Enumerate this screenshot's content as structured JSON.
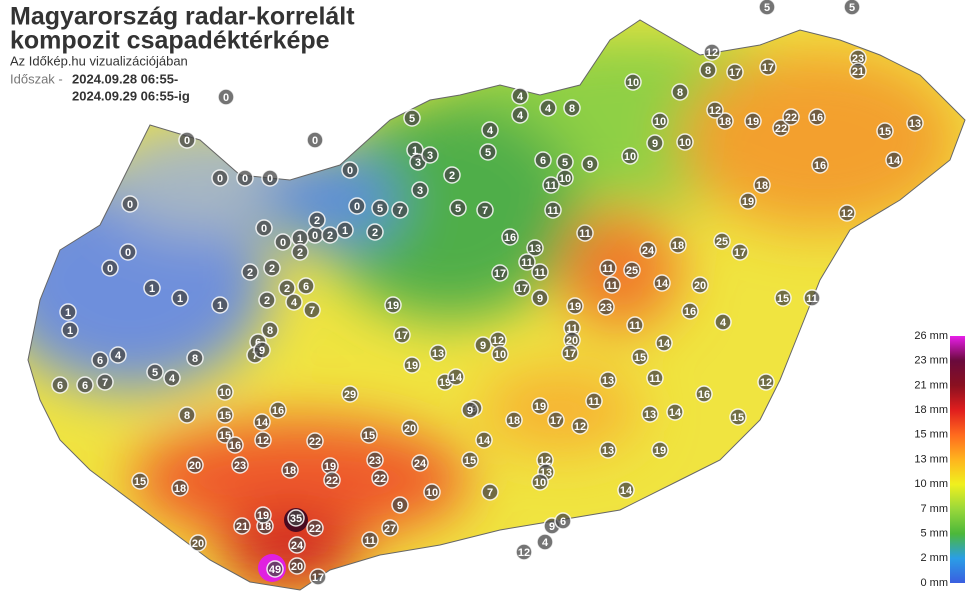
{
  "header": {
    "title_lines": [
      "Magyarország radar-korrelált",
      "kompozit csapadéktérképe"
    ],
    "subtitle": "Az Időkép.hu vizualizációjában",
    "period_label": "Időszak -",
    "period_from": "2024.09.28 06:55-",
    "period_to": "2024.09.29 06:55-ig"
  },
  "legend": {
    "ticks": [
      {
        "value": 26,
        "label": "26 mm"
      },
      {
        "value": 23,
        "label": "23 mm"
      },
      {
        "value": 21,
        "label": "21 mm"
      },
      {
        "value": 18,
        "label": "18 mm"
      },
      {
        "value": 15,
        "label": "15 mm"
      },
      {
        "value": 13,
        "label": "13 mm"
      },
      {
        "value": 10,
        "label": "10 mm"
      },
      {
        "value": 7,
        "label": "7 mm"
      },
      {
        "value": 5,
        "label": "5 mm"
      },
      {
        "value": 2,
        "label": "2 mm"
      },
      {
        "value": 0,
        "label": "0 mm"
      }
    ],
    "colors": [
      "#e81ee8",
      "#6a0a3c",
      "#8a1020",
      "#e01e1e",
      "#ff6a1e",
      "#ffb41e",
      "#f0f01e",
      "#9ad83a",
      "#4cb83a",
      "#2a9ee6",
      "#3a5ee0"
    ]
  },
  "stations": [
    0,
    0,
    0,
    0,
    1,
    1,
    1,
    1,
    4,
    6,
    6,
    6,
    7,
    5,
    4,
    8,
    1,
    2,
    2,
    2,
    2,
    4,
    6,
    7,
    8,
    6,
    7,
    9,
    8,
    10,
    15,
    15,
    16,
    14,
    16,
    12,
    20,
    18,
    15,
    23,
    18,
    22,
    19,
    22,
    23,
    22,
    24,
    20,
    15,
    29,
    19,
    17,
    19,
    13,
    19,
    14,
    15,
    9,
    14,
    7,
    35,
    22,
    18,
    21,
    19,
    20,
    24,
    20,
    49,
    17,
    27,
    11,
    10,
    9,
    2,
    5,
    3,
    7,
    5,
    1,
    3,
    3,
    2,
    5,
    7,
    5,
    4,
    4,
    4,
    4,
    8,
    5,
    6,
    10,
    9,
    11,
    11,
    11,
    16,
    13,
    11,
    11,
    17,
    17,
    9,
    19,
    23,
    11,
    20,
    17,
    11,
    24,
    25,
    18,
    14,
    20,
    25,
    17,
    4,
    16,
    14,
    15,
    11,
    11,
    10,
    10,
    10,
    9,
    10,
    8,
    12,
    8,
    17,
    17,
    18,
    19,
    22,
    22,
    16,
    23,
    21,
    15,
    13,
    14,
    16,
    18,
    19,
    12,
    11,
    15,
    12,
    15,
    16,
    14,
    19,
    11,
    13,
    13,
    11,
    12,
    19,
    18,
    17,
    12,
    10,
    9,
    9,
    12,
    13,
    10,
    13,
    14,
    9,
    12,
    4,
    6,
    5,
    5,
    12,
    0,
    0,
    0,
    0,
    0,
    0,
    0,
    0,
    0,
    1,
    2,
    2,
    2,
    1,
    0
  ]
}
